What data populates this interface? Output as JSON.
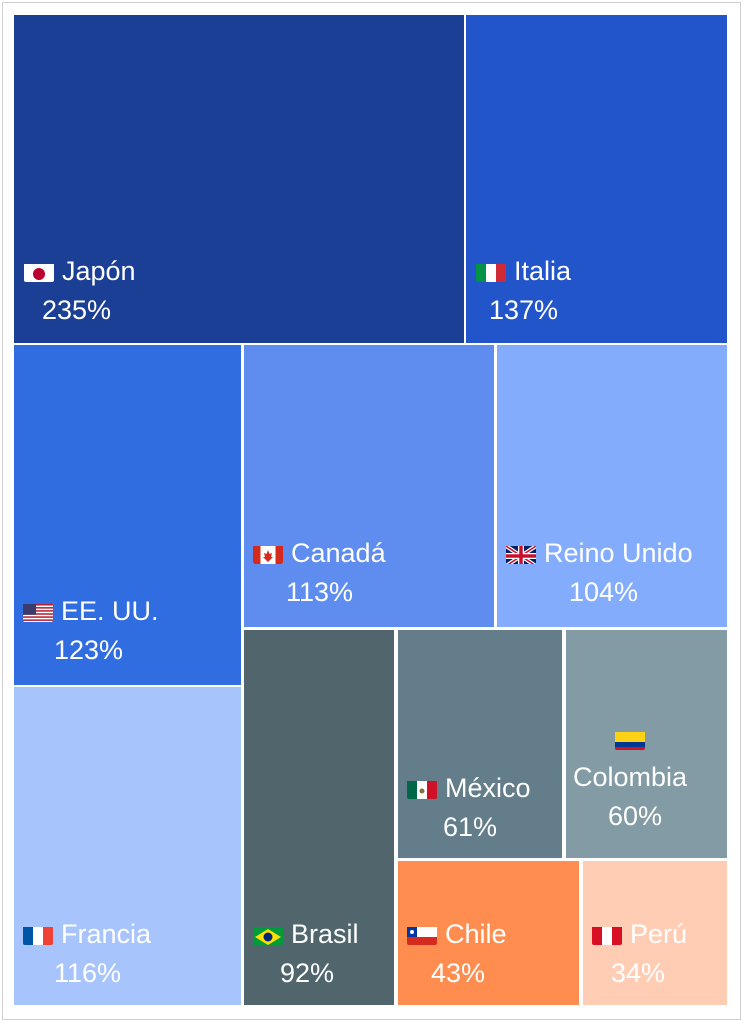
{
  "chart_data": {
    "type": "treemap",
    "items": [
      {
        "id": "japon",
        "name": "Japón",
        "flag": "jp",
        "value": 235,
        "label": "235%",
        "color": "#1b3f94"
      },
      {
        "id": "italia",
        "name": "Italia",
        "flag": "it",
        "value": 137,
        "label": "137%",
        "color": "#2255c9"
      },
      {
        "id": "eeuu",
        "name": "EE. UU.",
        "flag": "us",
        "value": 123,
        "label": "123%",
        "color": "#2f6de0"
      },
      {
        "id": "francia",
        "name": "Francia",
        "flag": "fr",
        "value": 116,
        "label": "116%",
        "color": "#a8c4fd"
      },
      {
        "id": "canada",
        "name": "Canadá",
        "flag": "ca",
        "value": 113,
        "label": "113%",
        "color": "#5e8def"
      },
      {
        "id": "reino-unido",
        "name": "Reino Unido",
        "flag": "gb",
        "value": 104,
        "label": "104%",
        "color": "#84acfc"
      },
      {
        "id": "brasil",
        "name": "Brasil",
        "flag": "br",
        "value": 92,
        "label": "92%",
        "color": "#50666c"
      },
      {
        "id": "mexico",
        "name": "México",
        "flag": "mx",
        "value": 61,
        "label": "61%",
        "color": "#637d8a"
      },
      {
        "id": "colombia",
        "name": "Colombia",
        "flag": "co",
        "value": 60,
        "label": "60%",
        "color": "#839ba4"
      },
      {
        "id": "chile",
        "name": "Chile",
        "flag": "cl",
        "value": 43,
        "label": "43%",
        "color": "#ff8d4f"
      },
      {
        "id": "peru",
        "name": "Perú",
        "flag": "pe",
        "value": 34,
        "label": "34%",
        "color": "#ffcdb4"
      }
    ]
  }
}
